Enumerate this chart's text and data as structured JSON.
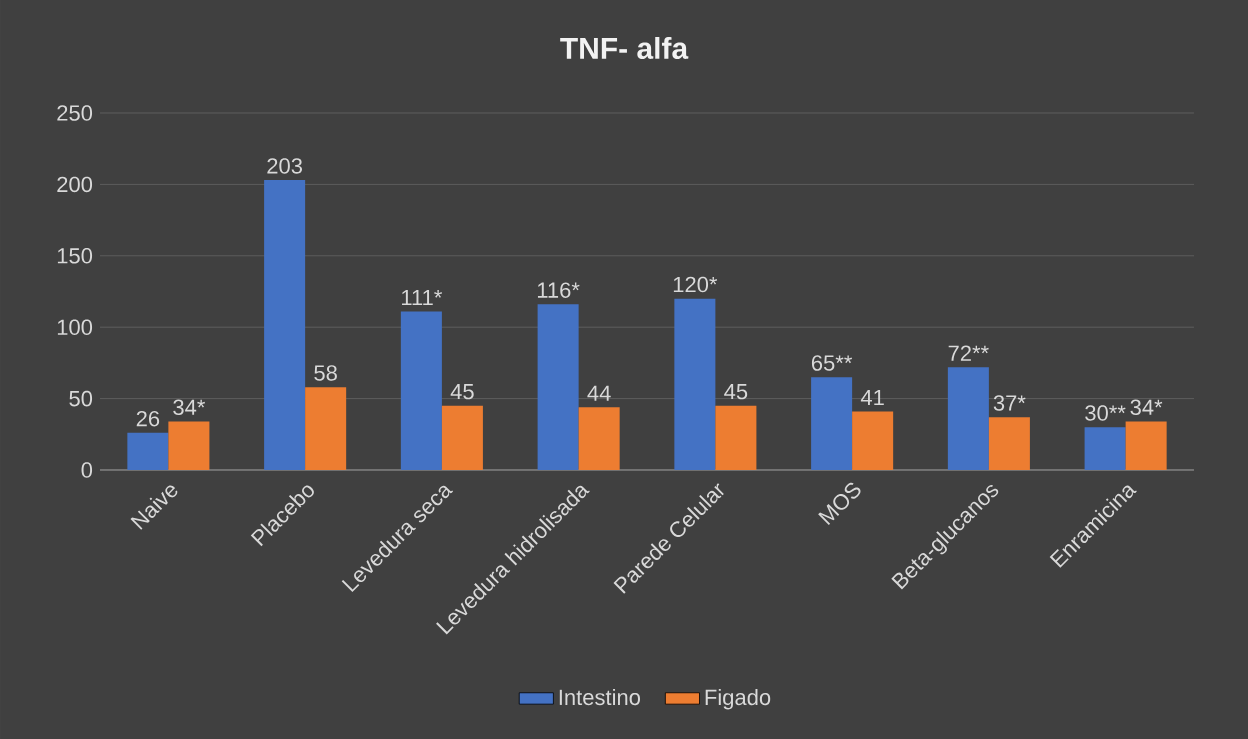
{
  "chart_data": {
    "type": "bar",
    "title": "TNF- alfa",
    "categories": [
      "Naive",
      "Placebo",
      "Levedura seca",
      "Levedura hidrolisada",
      "Parede Celular",
      "MOS",
      "Beta-glucanos",
      "Enramicina"
    ],
    "series": [
      {
        "name": "Intestino",
        "color": "#4472c4",
        "values": [
          26,
          203,
          111,
          116,
          120,
          65,
          72,
          30
        ],
        "value_labels": [
          "26",
          "203",
          "111*",
          "116*",
          "120*",
          "65**",
          "72**",
          "30**"
        ]
      },
      {
        "name": "Figado",
        "color": "#ed7d31",
        "values": [
          34,
          58,
          45,
          44,
          45,
          41,
          37,
          34
        ],
        "value_labels": [
          "34*",
          "58",
          "45",
          "44",
          "45",
          "41",
          "37*",
          "34*"
        ]
      }
    ],
    "ylim": [
      0,
      250
    ],
    "yticks": [
      0,
      50,
      100,
      150,
      200,
      250
    ],
    "grid": "y",
    "legend": "bottom"
  }
}
